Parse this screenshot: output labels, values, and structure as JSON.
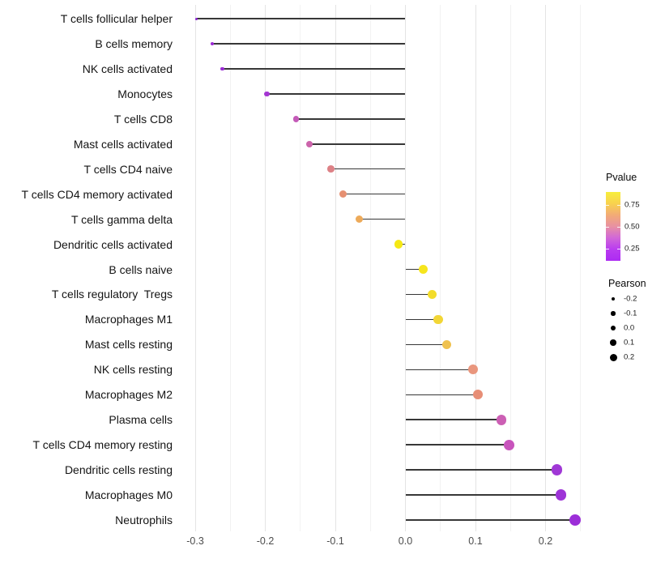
{
  "chart_data": {
    "type": "scatter",
    "subtype": "lollipop",
    "orientation": "horizontal",
    "background": "#ffffff",
    "xlabel": "",
    "ylabel": "",
    "xlim": [
      -0.325,
      0.27
    ],
    "grid": "vertical-only",
    "x_axis": {
      "major_ticks": [
        -0.3,
        -0.2,
        -0.1,
        0.0,
        0.1,
        0.2
      ],
      "major_tick_labels": [
        "-0.3",
        "-0.2",
        "-0.1",
        "0.0",
        "0.1",
        "0.2"
      ],
      "minor_ticks": [
        -0.25,
        -0.15,
        -0.05,
        0.05,
        0.15,
        0.25
      ]
    },
    "stem_color": "#373737",
    "points": [
      {
        "label": "T cells follicular helper",
        "pearson": -0.298,
        "color": "#8c25d2"
      },
      {
        "label": "B cells memory",
        "pearson": -0.276,
        "color": "#9c2ad4"
      },
      {
        "label": "NK cells activated",
        "pearson": -0.261,
        "color": "#9a2cd4"
      },
      {
        "label": "Monocytes",
        "pearson": -0.198,
        "color": "#a435d2"
      },
      {
        "label": "T cells CD8",
        "pearson": -0.156,
        "color": "#c45ab8"
      },
      {
        "label": "Mast cells activated",
        "pearson": -0.137,
        "color": "#cc64ab"
      },
      {
        "label": "T cells CD4 naive",
        "pearson": -0.106,
        "color": "#dd8186"
      },
      {
        "label": "T cells CD4 memory activated",
        "pearson": -0.089,
        "color": "#e69072"
      },
      {
        "label": "T cells gamma delta",
        "pearson": -0.066,
        "color": "#edaa59"
      },
      {
        "label": "Dendritic cells activated",
        "pearson": -0.01,
        "color": "#f5e814"
      },
      {
        "label": "B cells naive",
        "pearson": 0.025,
        "color": "#f6e51d"
      },
      {
        "label": "T cells regulatory  Tregs",
        "pearson": 0.038,
        "color": "#f3dc2b"
      },
      {
        "label": "Macrophages M1",
        "pearson": 0.047,
        "color": "#f2d636"
      },
      {
        "label": "Mast cells resting",
        "pearson": 0.059,
        "color": "#efc14e"
      },
      {
        "label": "NK cells resting",
        "pearson": 0.096,
        "color": "#e9967d"
      },
      {
        "label": "Macrophages M2",
        "pearson": 0.103,
        "color": "#e78e76"
      },
      {
        "label": "Plasma cells",
        "pearson": 0.137,
        "color": "#cc5fb4"
      },
      {
        "label": "T cells CD4 memory resting",
        "pearson": 0.148,
        "color": "#c854bc"
      },
      {
        "label": "Dendritic cells resting",
        "pearson": 0.216,
        "color": "#a038d6"
      },
      {
        "label": "Macrophages M0",
        "pearson": 0.222,
        "color": "#9e34d7"
      },
      {
        "label": "Neutrophils",
        "pearson": 0.242,
        "color": "#9c2ed8"
      }
    ],
    "legend": {
      "pvalue": {
        "title": "Pvalue",
        "tick_labels": [
          "0.75",
          "0.50",
          "0.25"
        ],
        "tick_positions_pct": [
          18.8,
          50.6,
          82.4
        ],
        "gradient_top_to_bottom": [
          "#f7ee3c",
          "#f8d24e",
          "#f2ab76",
          "#e891a2",
          "#d167d8",
          "#b93cf0",
          "#ad2bf2"
        ]
      },
      "pearson": {
        "title": "Pearson",
        "entries": [
          {
            "label": "-0.2",
            "diameter": 4.5
          },
          {
            "label": "-0.1",
            "diameter": 5.5
          },
          {
            "label": "0.0",
            "diameter": 6.5
          },
          {
            "label": "0.1",
            "diameter": 7.5
          },
          {
            "label": "0.2",
            "diameter": 9.0
          }
        ]
      }
    }
  }
}
